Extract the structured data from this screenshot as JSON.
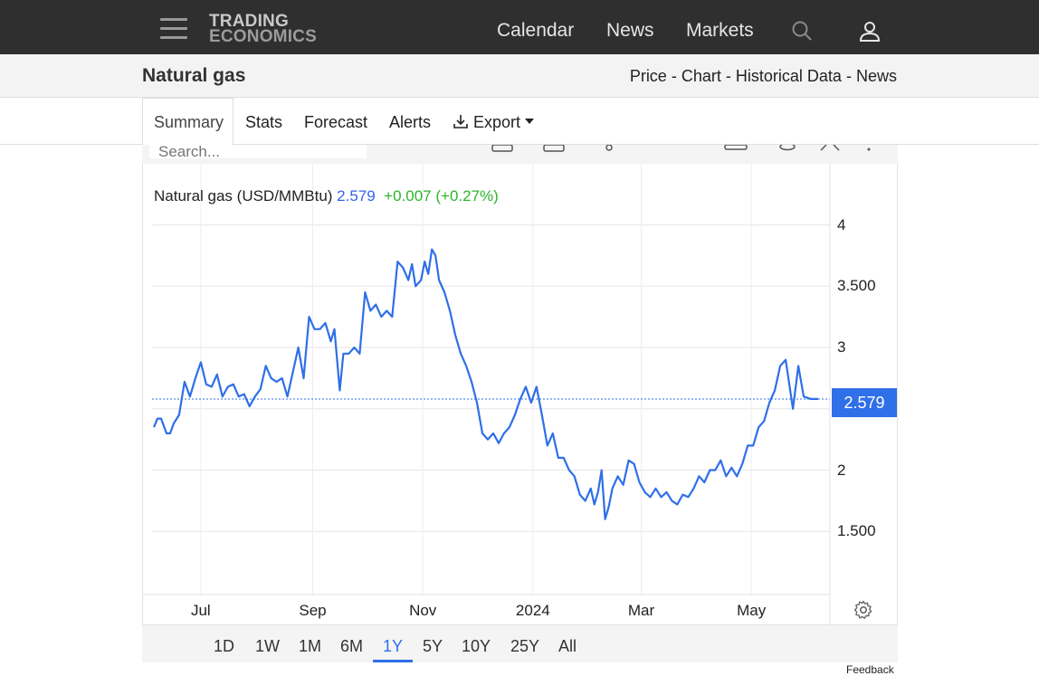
{
  "header": {
    "logo_line1": "TRADING",
    "logo_line2": "ECONOMICS",
    "nav": [
      "Calendar",
      "News",
      "Markets"
    ],
    "icons": [
      "menu-icon",
      "search-icon",
      "user-icon"
    ]
  },
  "subheader": {
    "title": "Natural gas",
    "breadcrumb": [
      "Price",
      "Chart",
      "Historical Data",
      "News"
    ],
    "separator": "-"
  },
  "tabs": [
    "Summary",
    "Stats",
    "Forecast",
    "Alerts",
    "Export"
  ],
  "active_tab": "Summary",
  "chart_toolbar": {
    "search_placeholder": "Search..."
  },
  "legend": {
    "name": "Natural gas (USD/MMBtu)",
    "price": "2.579",
    "change": "+0.007 (+0.27%)"
  },
  "current_price_label": "2.579",
  "ranges": [
    "1D",
    "1W",
    "1M",
    "6M",
    "1Y",
    "5Y",
    "10Y",
    "25Y",
    "All"
  ],
  "active_range": "1Y",
  "feedback": "Feedback",
  "colors": {
    "line": "#2f6fe8",
    "positive": "#2bb52b",
    "topbar": "#2f2f2f"
  },
  "chart_data": {
    "type": "line",
    "title": "",
    "xlabel": "",
    "ylabel": "",
    "ylim": [
      1.0,
      4.1
    ],
    "yticks": [
      1.5,
      2,
      2.5,
      3,
      3.5,
      4
    ],
    "ytick_labels": [
      "1.500",
      "2",
      "",
      "3",
      "3.500",
      "4"
    ],
    "xticks": [
      "2023-07-01",
      "2023-09-01",
      "2023-11-01",
      "2024-01-01",
      "2024-03-01",
      "2024-05-01"
    ],
    "xtick_labels": [
      "Jul",
      "Sep",
      "Nov",
      "2024",
      "Mar",
      "May"
    ],
    "x_range": [
      "2023-06-05",
      "2024-06-07"
    ],
    "grid": true,
    "reference_line": 2.579,
    "series": [
      {
        "name": "Natural gas (USD/MMBtu)",
        "points": [
          [
            "2023-06-05",
            2.35
          ],
          [
            "2023-06-07",
            2.42
          ],
          [
            "2023-06-09",
            2.42
          ],
          [
            "2023-06-12",
            2.3
          ],
          [
            "2023-06-14",
            2.3
          ],
          [
            "2023-06-16",
            2.38
          ],
          [
            "2023-06-19",
            2.45
          ],
          [
            "2023-06-22",
            2.72
          ],
          [
            "2023-06-25",
            2.6
          ],
          [
            "2023-06-28",
            2.75
          ],
          [
            "2023-07-01",
            2.88
          ],
          [
            "2023-07-04",
            2.7
          ],
          [
            "2023-07-07",
            2.68
          ],
          [
            "2023-07-10",
            2.78
          ],
          [
            "2023-07-13",
            2.6
          ],
          [
            "2023-07-16",
            2.68
          ],
          [
            "2023-07-19",
            2.7
          ],
          [
            "2023-07-22",
            2.6
          ],
          [
            "2023-07-25",
            2.62
          ],
          [
            "2023-07-28",
            2.52
          ],
          [
            "2023-07-31",
            2.6
          ],
          [
            "2023-08-03",
            2.66
          ],
          [
            "2023-08-06",
            2.85
          ],
          [
            "2023-08-09",
            2.75
          ],
          [
            "2023-08-12",
            2.72
          ],
          [
            "2023-08-15",
            2.75
          ],
          [
            "2023-08-18",
            2.6
          ],
          [
            "2023-08-21",
            2.8
          ],
          [
            "2023-08-24",
            3.0
          ],
          [
            "2023-08-27",
            2.75
          ],
          [
            "2023-08-30",
            3.25
          ],
          [
            "2023-09-02",
            3.15
          ],
          [
            "2023-09-05",
            3.15
          ],
          [
            "2023-09-08",
            3.2
          ],
          [
            "2023-09-11",
            3.05
          ],
          [
            "2023-09-13",
            3.15
          ],
          [
            "2023-09-16",
            2.65
          ],
          [
            "2023-09-18",
            2.95
          ],
          [
            "2023-09-21",
            2.95
          ],
          [
            "2023-09-24",
            3.0
          ],
          [
            "2023-09-27",
            2.95
          ],
          [
            "2023-09-30",
            3.45
          ],
          [
            "2023-10-03",
            3.3
          ],
          [
            "2023-10-06",
            3.35
          ],
          [
            "2023-10-09",
            3.25
          ],
          [
            "2023-10-12",
            3.3
          ],
          [
            "2023-10-15",
            3.25
          ],
          [
            "2023-10-18",
            3.7
          ],
          [
            "2023-10-21",
            3.65
          ],
          [
            "2023-10-24",
            3.55
          ],
          [
            "2023-10-26",
            3.68
          ],
          [
            "2023-10-28",
            3.5
          ],
          [
            "2023-10-31",
            3.55
          ],
          [
            "2023-11-02",
            3.7
          ],
          [
            "2023-11-04",
            3.6
          ],
          [
            "2023-11-06",
            3.8
          ],
          [
            "2023-11-08",
            3.75
          ],
          [
            "2023-11-10",
            3.55
          ],
          [
            "2023-11-13",
            3.45
          ],
          [
            "2023-11-16",
            3.3
          ],
          [
            "2023-11-19",
            3.1
          ],
          [
            "2023-11-22",
            2.95
          ],
          [
            "2023-11-25",
            2.85
          ],
          [
            "2023-11-28",
            2.72
          ],
          [
            "2023-12-01",
            2.55
          ],
          [
            "2023-12-04",
            2.3
          ],
          [
            "2023-12-07",
            2.25
          ],
          [
            "2023-12-10",
            2.3
          ],
          [
            "2023-12-13",
            2.22
          ],
          [
            "2023-12-16",
            2.3
          ],
          [
            "2023-12-19",
            2.35
          ],
          [
            "2023-12-22",
            2.45
          ],
          [
            "2023-12-25",
            2.58
          ],
          [
            "2023-12-28",
            2.68
          ],
          [
            "2023-12-31",
            2.55
          ],
          [
            "2024-01-03",
            2.68
          ],
          [
            "2024-01-06",
            2.45
          ],
          [
            "2024-01-09",
            2.2
          ],
          [
            "2024-01-12",
            2.3
          ],
          [
            "2024-01-15",
            2.1
          ],
          [
            "2024-01-18",
            2.1
          ],
          [
            "2024-01-21",
            2.0
          ],
          [
            "2024-01-24",
            1.95
          ],
          [
            "2024-01-27",
            1.8
          ],
          [
            "2024-01-30",
            1.75
          ],
          [
            "2024-02-02",
            1.85
          ],
          [
            "2024-02-04",
            1.72
          ],
          [
            "2024-02-06",
            1.82
          ],
          [
            "2024-02-08",
            2.0
          ],
          [
            "2024-02-10",
            1.6
          ],
          [
            "2024-02-12",
            1.7
          ],
          [
            "2024-02-14",
            1.85
          ],
          [
            "2024-02-17",
            1.95
          ],
          [
            "2024-02-20",
            1.88
          ],
          [
            "2024-02-23",
            2.08
          ],
          [
            "2024-02-26",
            2.05
          ],
          [
            "2024-02-29",
            1.9
          ],
          [
            "2024-03-03",
            1.82
          ],
          [
            "2024-03-06",
            1.78
          ],
          [
            "2024-03-09",
            1.85
          ],
          [
            "2024-03-12",
            1.78
          ],
          [
            "2024-03-15",
            1.82
          ],
          [
            "2024-03-18",
            1.75
          ],
          [
            "2024-03-21",
            1.72
          ],
          [
            "2024-03-24",
            1.8
          ],
          [
            "2024-03-27",
            1.78
          ],
          [
            "2024-03-30",
            1.85
          ],
          [
            "2024-04-02",
            1.95
          ],
          [
            "2024-04-05",
            1.9
          ],
          [
            "2024-04-08",
            2.0
          ],
          [
            "2024-04-11",
            2.0
          ],
          [
            "2024-04-14",
            2.08
          ],
          [
            "2024-04-17",
            1.95
          ],
          [
            "2024-04-20",
            2.02
          ],
          [
            "2024-04-23",
            1.95
          ],
          [
            "2024-04-26",
            2.05
          ],
          [
            "2024-04-29",
            2.2
          ],
          [
            "2024-05-02",
            2.2
          ],
          [
            "2024-05-05",
            2.35
          ],
          [
            "2024-05-08",
            2.4
          ],
          [
            "2024-05-11",
            2.55
          ],
          [
            "2024-05-14",
            2.65
          ],
          [
            "2024-05-17",
            2.85
          ],
          [
            "2024-05-20",
            2.9
          ],
          [
            "2024-05-22",
            2.7
          ],
          [
            "2024-05-24",
            2.5
          ],
          [
            "2024-05-27",
            2.85
          ],
          [
            "2024-05-30",
            2.6
          ],
          [
            "2024-06-03",
            2.58
          ],
          [
            "2024-06-07",
            2.58
          ]
        ]
      }
    ]
  }
}
